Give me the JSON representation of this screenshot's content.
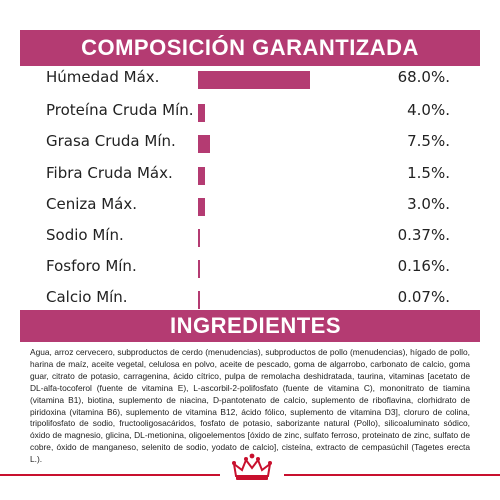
{
  "composition": {
    "title": "COMPOSICIÓN GARANTIZADA",
    "accent_color": "#b43b72",
    "rows": [
      {
        "label": "Húmedad Máx.",
        "value": "68.0%.",
        "percent": 68.0
      },
      {
        "label": "Proteína Cruda Mín.",
        "value": "4.0%.",
        "percent": 4.0
      },
      {
        "label": "Grasa Cruda Mín.",
        "value": "7.5%.",
        "percent": 7.5
      },
      {
        "label": "Fibra Cruda Máx.",
        "value": "1.5%.",
        "percent": 1.5
      },
      {
        "label": "Ceniza Máx.",
        "value": "3.0%.",
        "percent": 3.0
      },
      {
        "label": "Sodio Mín.",
        "value": "0.37%.",
        "percent": 0.37
      },
      {
        "label": "Fosforo Mín.",
        "value": "0.16%.",
        "percent": 0.16
      },
      {
        "label": "Calcio Mín.",
        "value": "0.07%.",
        "percent": 0.07
      }
    ]
  },
  "ingredients": {
    "title": "INGREDIENTES",
    "text": "Agua, arroz cervecero, subproductos de cerdo (menudencias), subproductos de pollo (menudencias), hígado de pollo, harina de maíz, aceite vegetal, celulosa en polvo, aceite de pescado, goma de algarrobo, carbonato de calcio, goma guar, citrato de potasio, carragenina, ácido cítrico, pulpa de remolacha deshidratada, taurina, vitaminas [acetato de DL-alfa-tocoferol (fuente de vitamina E), L-ascorbil-2-polifosfato (fuente de vitamina C), mononitrato de tiamina (vitamina B1), biotina, suplemento de niacina, D-pantotenato de calcio, suplemento de riboflavina, clorhidrato de piridoxina (vitamina B6), suplemento de vitamina B12, ácido fólico, suplemento de vitamina D3], cloruro de colina, tripolifosfato de sodio, fructooligosacáridos, fosfato de potasio, saborizante natural (Pollo), silicoaluminato sódico, óxido de magnesio, glicina, DL-metionina, oligoelementos [óxido de zinc, sulfato ferroso, proteinato de zinc, sulfato de cobre, óxido de manganeso, selenito de sodio, yodato de calcio], cisteína, extracto de cempasúchil (Tagetes erecta L.)."
  },
  "footer": {
    "logo_icon": "royal-canin-crown-icon",
    "line_color": "#c8102e"
  }
}
